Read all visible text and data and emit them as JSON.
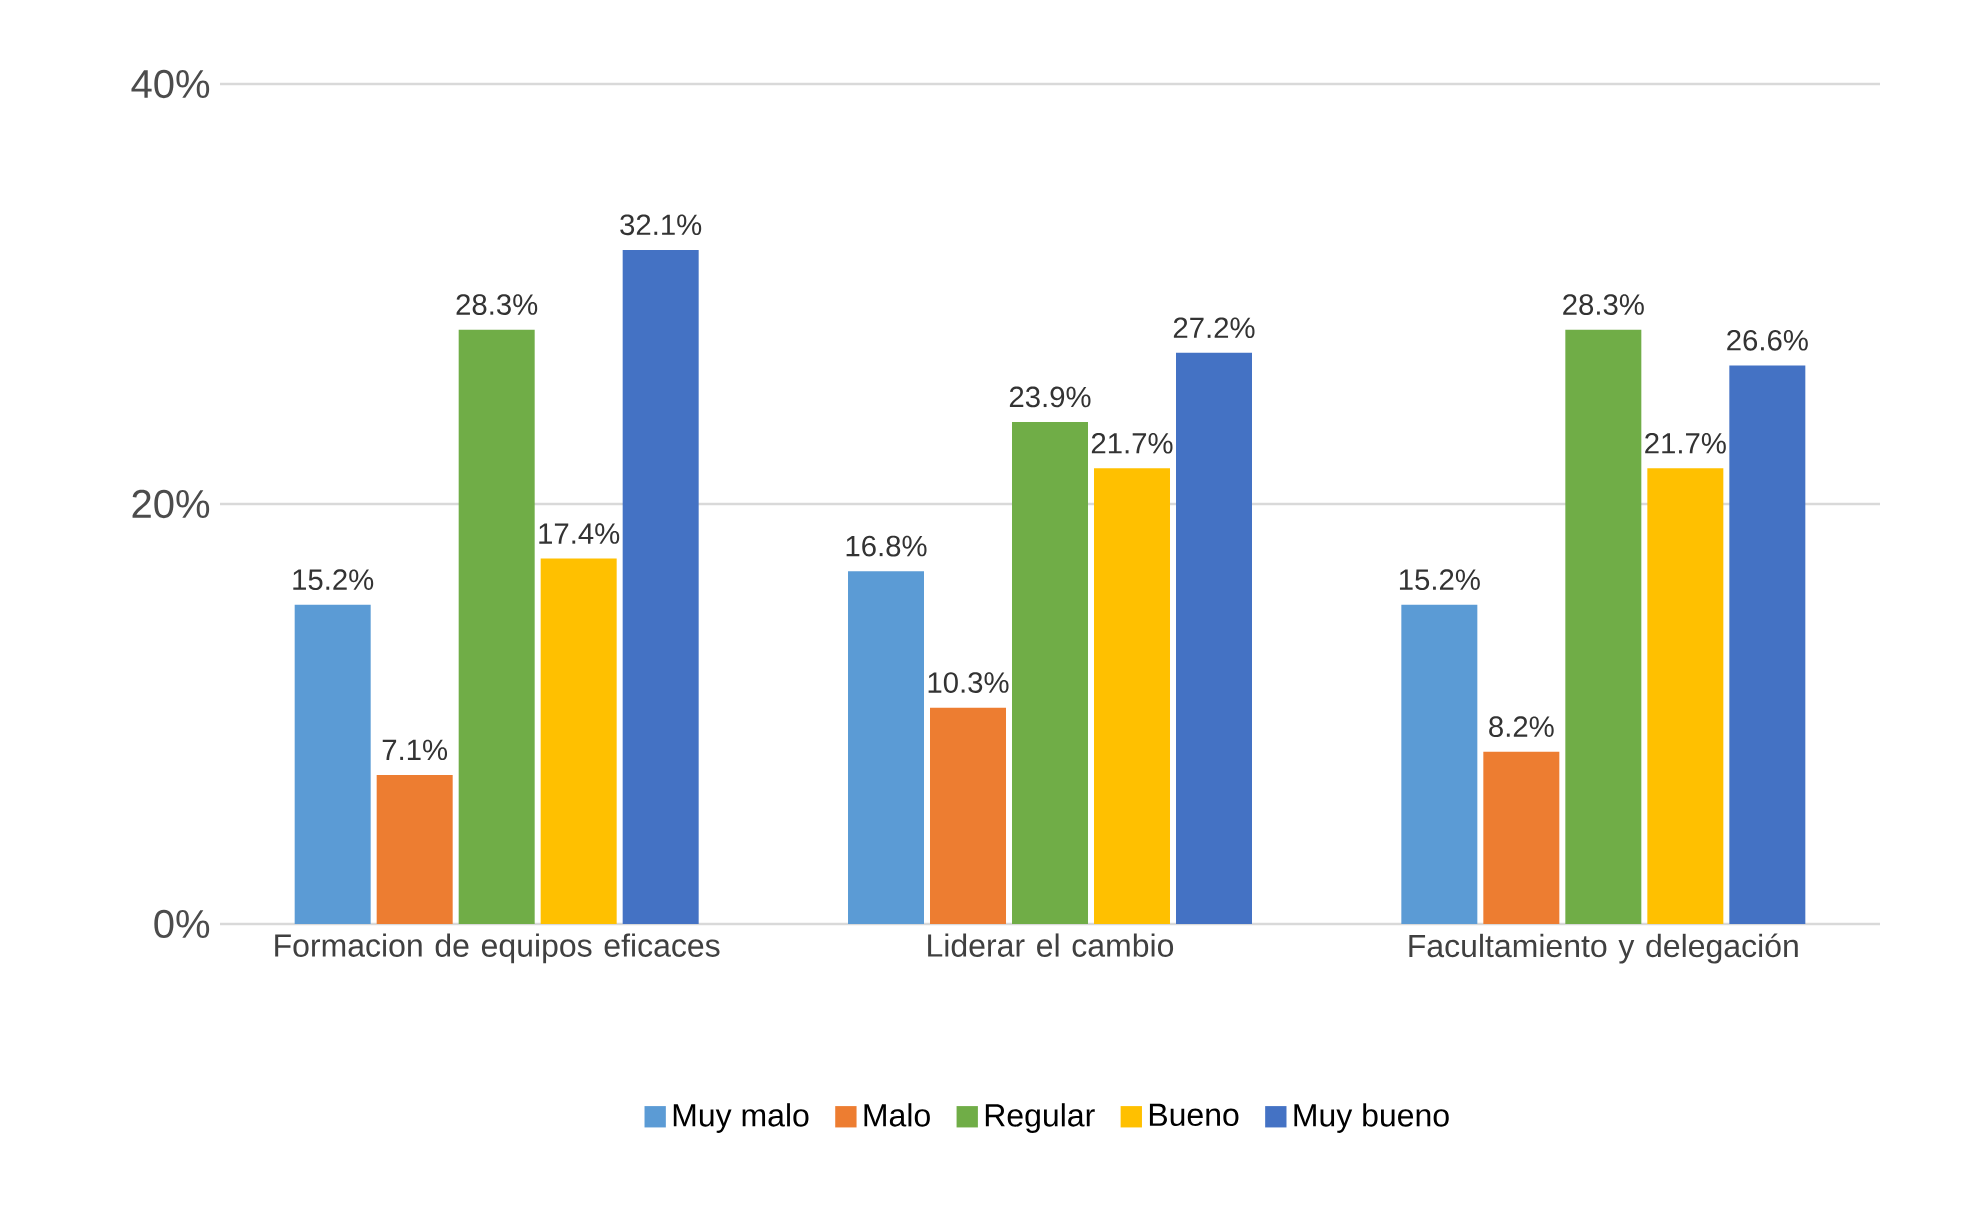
{
  "chart_data": {
    "type": "bar",
    "categories": [
      "Formacion de equipos eficaces",
      "Liderar el cambio",
      "Facultamiento y delegación"
    ],
    "series": [
      {
        "name": "Muy malo",
        "color": "#5b9bd5",
        "values": [
          15.2,
          16.8,
          15.2
        ],
        "value_labels": [
          "15.2%",
          "16.8%",
          "15.2%"
        ]
      },
      {
        "name": "Malo",
        "color": "#ed7d31",
        "values": [
          7.1,
          10.3,
          8.2
        ],
        "value_labels": [
          "7.1%",
          "10.3%",
          "8.2%"
        ]
      },
      {
        "name": "Regular",
        "color": "#70ad47",
        "values": [
          28.3,
          23.9,
          28.3
        ],
        "value_labels": [
          "28.3%",
          "23.9%",
          "28.3%"
        ]
      },
      {
        "name": "Bueno",
        "color": "#ffc000",
        "values": [
          17.4,
          21.7,
          21.7
        ],
        "value_labels": [
          "17.4%",
          "21.7%",
          "21.7%"
        ]
      },
      {
        "name": "Muy bueno",
        "color": "#4472c4",
        "values": [
          32.1,
          27.2,
          26.6
        ],
        "value_labels": [
          "32.1%",
          "27.2%",
          "26.6%"
        ]
      }
    ],
    "ylim": [
      0,
      40
    ],
    "yticks": [
      {
        "value": 0,
        "label": "0%"
      },
      {
        "value": 20,
        "label": "20%"
      },
      {
        "value": 40,
        "label": "40%"
      }
    ],
    "grid": "y",
    "legend": "bottom"
  }
}
